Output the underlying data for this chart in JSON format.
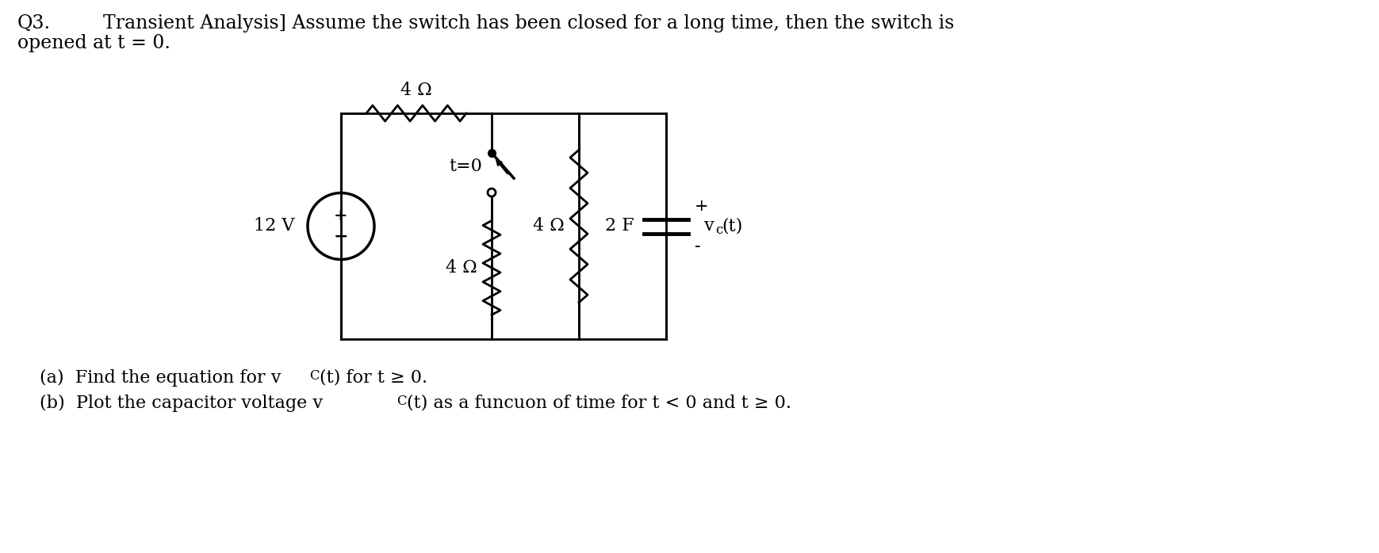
{
  "q3_label": "Q3.",
  "header_text": "Transient Analysis] Assume the switch has been closed for a long time, then the switch is",
  "line2_text": "opened at t = 0.",
  "part_a": "(a)  Find the equation for v",
  "part_a2": "C",
  "part_a3": "(t) for t",
  "part_a4": "≥",
  "part_a5": " 0.",
  "part_b": "(b)  Plot the capacitor voltage v",
  "part_b2": "C",
  "part_b3": "(t) as a funcuon of time for t < 0 and t",
  "part_b4": "≥",
  "part_b5": " 0.",
  "resistor_top_label": "4 Ω",
  "resistor_mid_label": "4 Ω",
  "resistor_bot_label": "4 Ω",
  "capacitor_label": "2 F",
  "voltage_label": "12 V",
  "switch_label": "t=0",
  "vc_label": "v",
  "vc_sub": "c",
  "vc_end": "(t)",
  "plus_sign": "+",
  "minus_sign": "-",
  "bg_color": "#ffffff",
  "line_color": "#000000",
  "font_size_header": 17,
  "font_size_circuit": 16,
  "font_size_parts": 16
}
